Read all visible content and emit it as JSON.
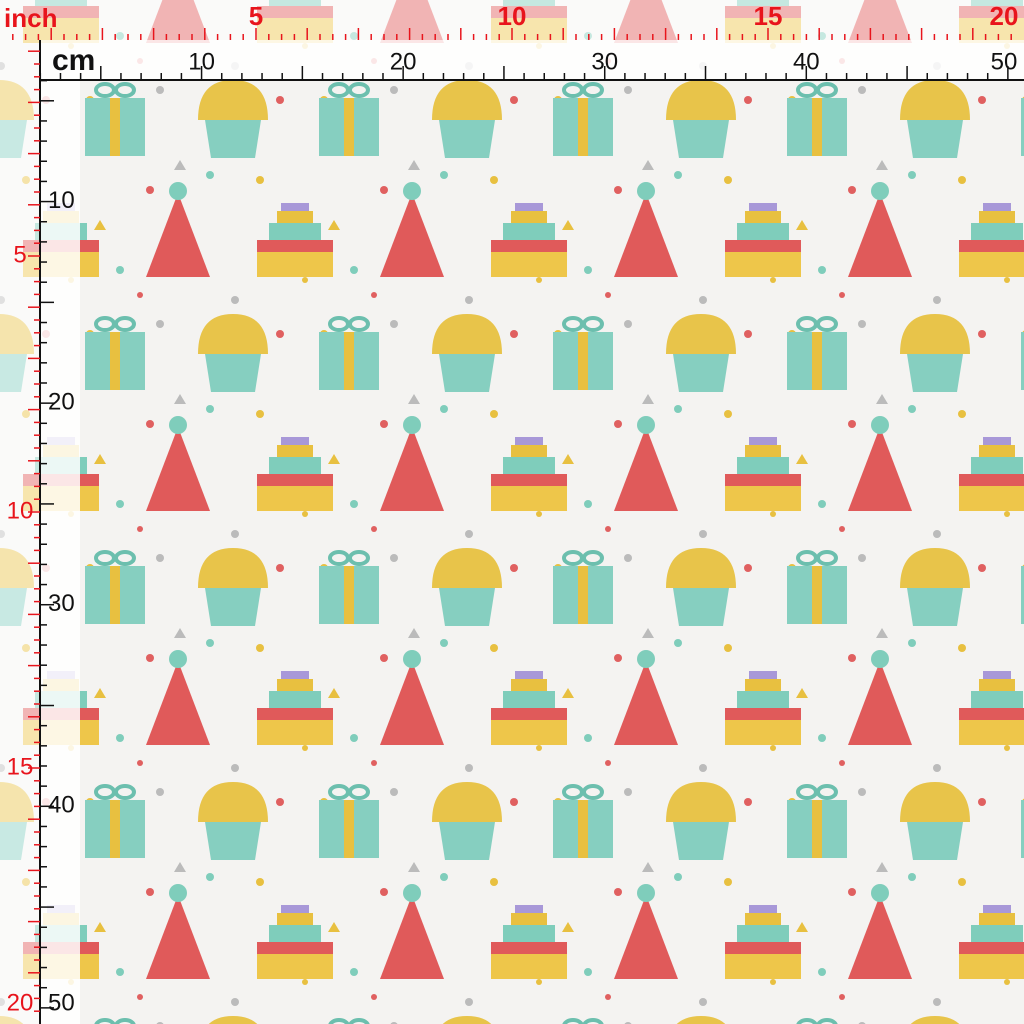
{
  "rulers": {
    "top": {
      "inch_unit": "inch",
      "inch_labels": [
        5,
        10,
        15,
        20
      ],
      "cm_unit": "cm",
      "cm_labels": [
        10,
        20,
        30,
        40,
        50
      ]
    },
    "left": {
      "cm_labels": [
        10,
        20,
        30,
        40,
        50
      ],
      "inch_labels": [
        5,
        10,
        15,
        20
      ]
    }
  }
}
